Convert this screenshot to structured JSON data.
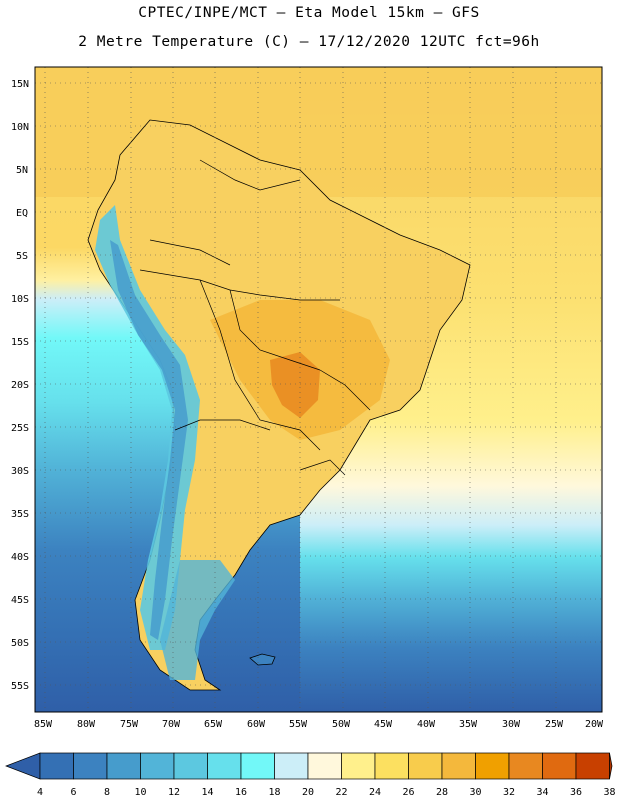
{
  "header": {
    "line1": "CPTEC/INPE/MCT –  Eta Model 15km – GFS",
    "line2": "2 Metre Temperature (C) – 17/12/2020 12UTC fct=96h"
  },
  "map": {
    "lat_labels": [
      "15N",
      "10N",
      "5N",
      "EQ",
      "5S",
      "10S",
      "15S",
      "20S",
      "25S",
      "30S",
      "35S",
      "40S",
      "45S",
      "50S",
      "55S"
    ],
    "lon_labels": [
      "85W",
      "80W",
      "75W",
      "70W",
      "65W",
      "60W",
      "55W",
      "50W",
      "45W",
      "40W",
      "35W",
      "30W",
      "25W",
      "20W"
    ]
  },
  "colorbar": {
    "values": [
      "4",
      "6",
      "8",
      "10",
      "12",
      "14",
      "16",
      "18",
      "20",
      "22",
      "24",
      "26",
      "28",
      "30",
      "32",
      "34",
      "36",
      "38"
    ],
    "colors": [
      "#2f5fa8",
      "#3470b4",
      "#3c82c0",
      "#469ccc",
      "#52b4d8",
      "#5cc8e0",
      "#66e0ec",
      "#72f8f8",
      "#cceef8",
      "#fff8dc",
      "#fff08c",
      "#fce060",
      "#f8cc4c",
      "#f4b83c",
      "#f0a000",
      "#e88820",
      "#e06a10",
      "#c84000",
      "#b03400"
    ]
  },
  "legend_colors": {
    "ocean_cold": "#2f5fa8",
    "ocean_mid": "#52b4d8",
    "ocean_warm": "#fff08c",
    "land_hot": "#f0a000",
    "andes": "#5cc8e0"
  }
}
